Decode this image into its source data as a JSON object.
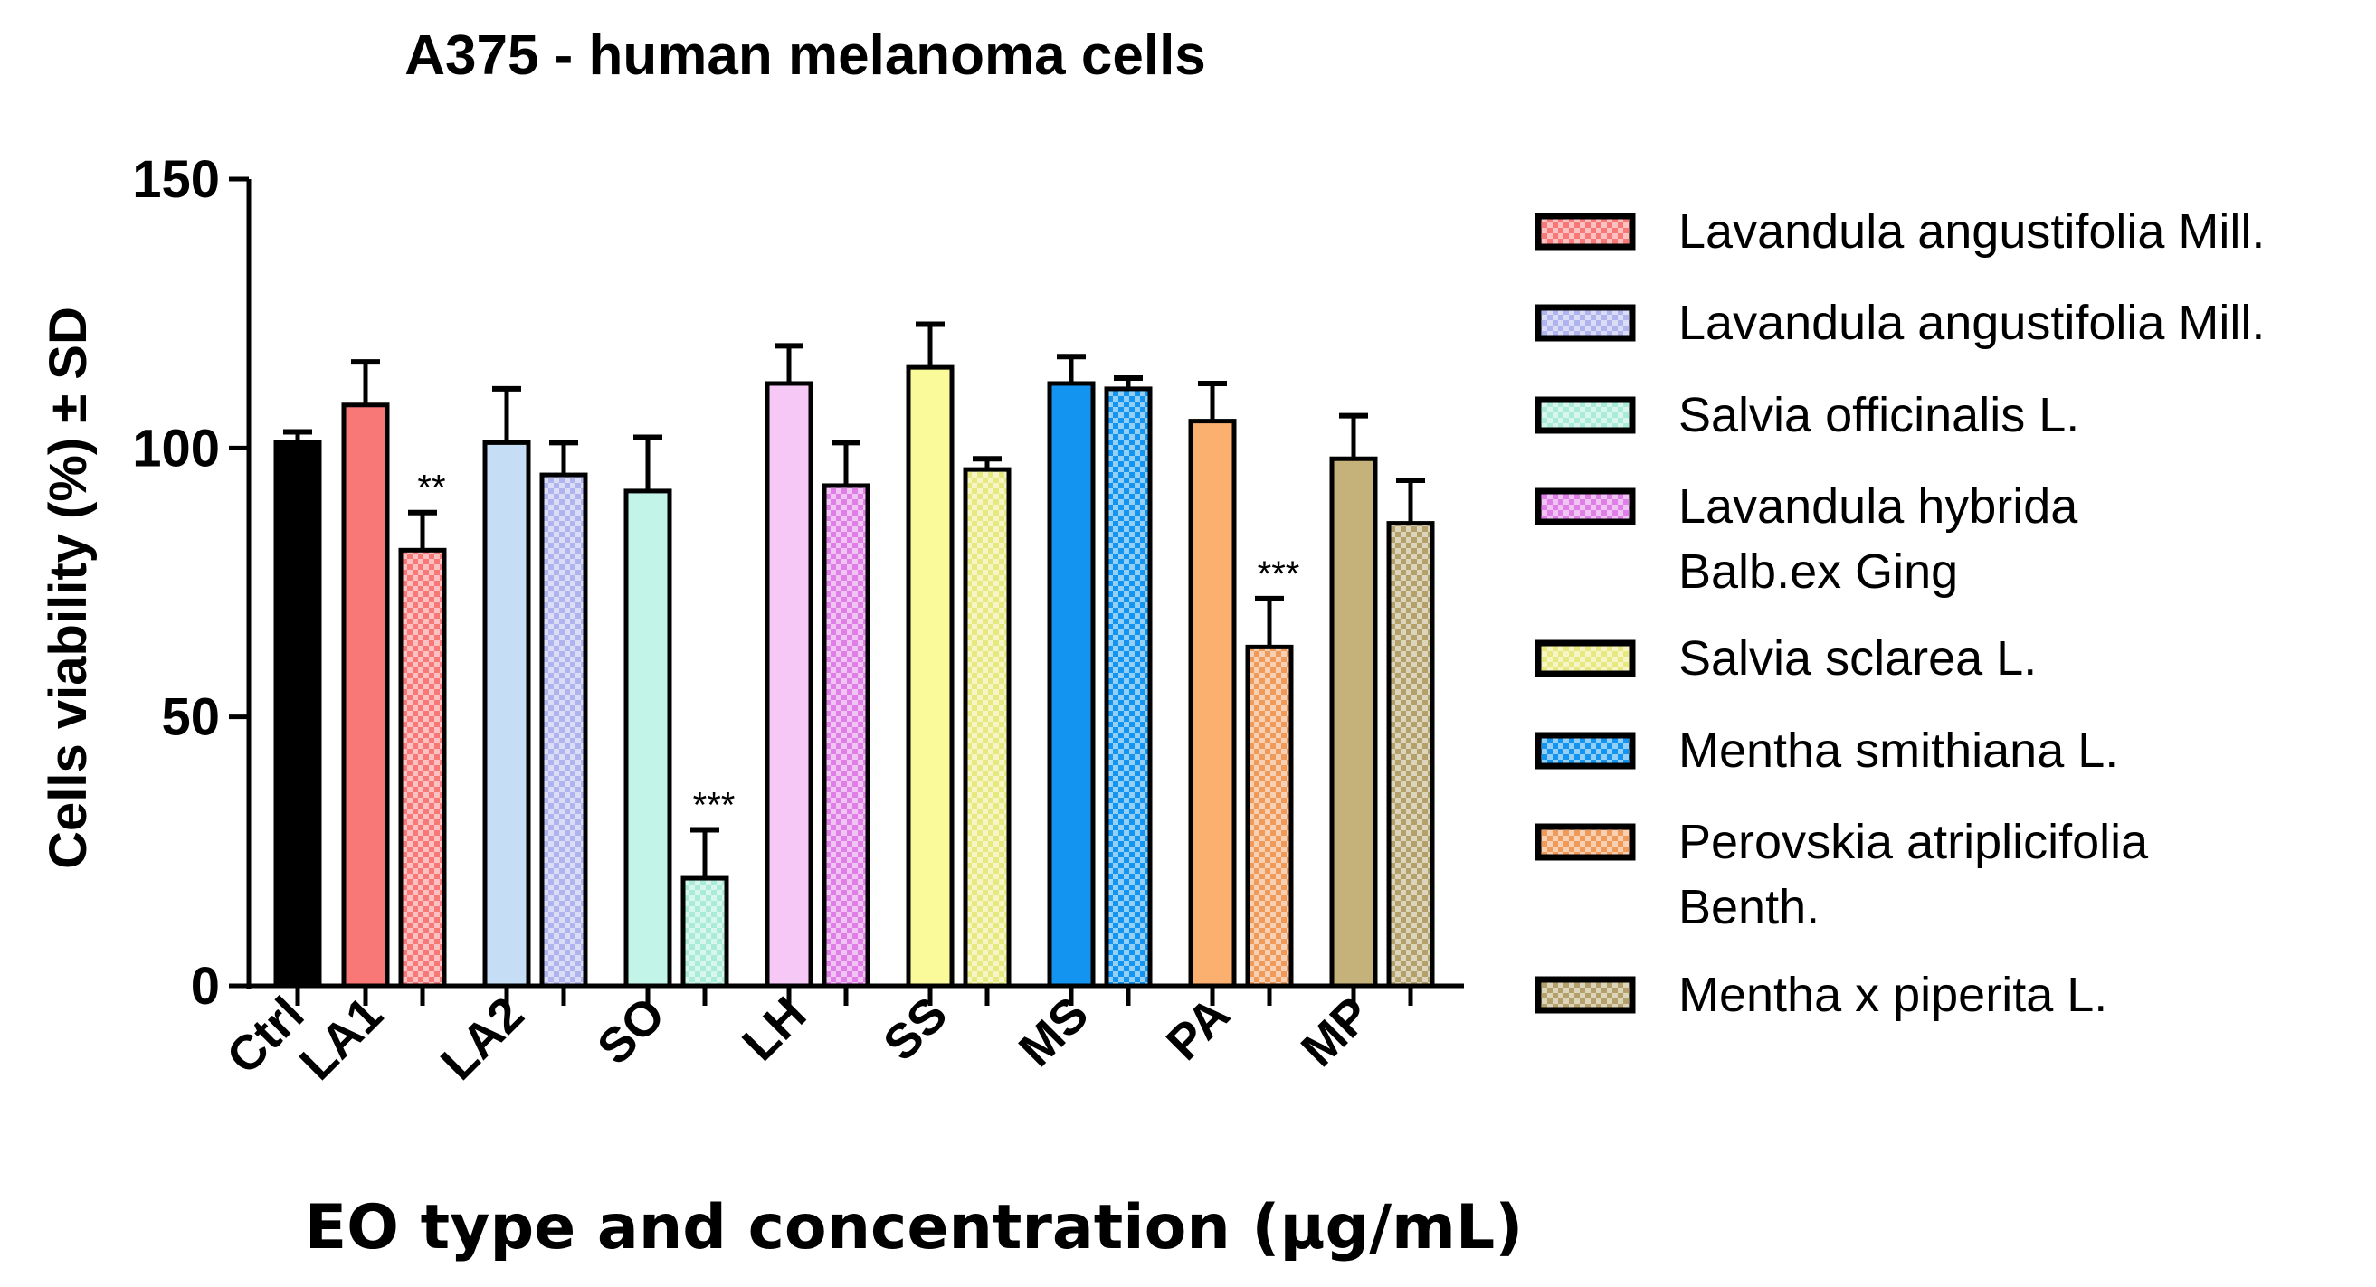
{
  "chart_data": {
    "type": "bar",
    "title": "A375 - human melanoma cells",
    "ylabel": "Cells viability (%) ± SD",
    "xlabel": "EO type and concentration (μg/mL)",
    "ylim": [
      0,
      150
    ],
    "yticks": [
      0,
      50,
      100,
      150
    ],
    "categories": [
      "Ctrl",
      "LA1",
      "LA2",
      "SO",
      "LH",
      "SS",
      "MS",
      "PA",
      "MP"
    ],
    "bars": [
      {
        "group": "Ctrl",
        "series": "Ctrl",
        "value": 101,
        "sd": 2,
        "fill": "#000000",
        "pattern": false,
        "annotation": ""
      },
      {
        "group": "LA1",
        "series": "Lavandula angustifolia Mill.",
        "value": 108,
        "sd": 8,
        "fill": "#f87878",
        "pattern": false,
        "annotation": ""
      },
      {
        "group": "LA1",
        "series": "Lavandula angustifolia Mill.",
        "value": 81,
        "sd": 7,
        "fill": "#f87878",
        "pattern": true,
        "annotation": "**"
      },
      {
        "group": "LA2",
        "series": "Lavandula angustifolia Mill.",
        "value": 101,
        "sd": 10,
        "fill": "#c6ddf6",
        "pattern": false,
        "annotation": ""
      },
      {
        "group": "LA2",
        "series": "Lavandula angustifolia Mill.",
        "value": 95,
        "sd": 6,
        "fill": "#b0b4ee",
        "pattern": true,
        "annotation": ""
      },
      {
        "group": "SO",
        "series": "Salvia officinalis L.",
        "value": 92,
        "sd": 10,
        "fill": "#c2f5e8",
        "pattern": false,
        "annotation": ""
      },
      {
        "group": "SO",
        "series": "Salvia officinalis L.",
        "value": 20,
        "sd": 9,
        "fill": "#a8ecd8",
        "pattern": true,
        "annotation": "***"
      },
      {
        "group": "LH",
        "series": "Lavandula hybrida Balb.ex Ging",
        "value": 112,
        "sd": 7,
        "fill": "#f6c8f6",
        "pattern": false,
        "annotation": ""
      },
      {
        "group": "LH",
        "series": "Lavandula hybrida Balb.ex Ging",
        "value": 93,
        "sd": 8,
        "fill": "#de7ee6",
        "pattern": true,
        "annotation": ""
      },
      {
        "group": "SS",
        "series": "Salvia sclarea L.",
        "value": 115,
        "sd": 8,
        "fill": "#fafa9a",
        "pattern": false,
        "annotation": ""
      },
      {
        "group": "SS",
        "series": "Salvia sclarea L.",
        "value": 96,
        "sd": 2,
        "fill": "#e8e880",
        "pattern": true,
        "annotation": ""
      },
      {
        "group": "MS",
        "series": "Mentha smithiana L.",
        "value": 112,
        "sd": 5,
        "fill": "#1294f0",
        "pattern": false,
        "annotation": ""
      },
      {
        "group": "MS",
        "series": "Mentha smithiana L.",
        "value": 111,
        "sd": 2,
        "fill": "#1294f0",
        "pattern": true,
        "annotation": ""
      },
      {
        "group": "PA",
        "series": "Perovskia atriplicifolia Benth.",
        "value": 105,
        "sd": 7,
        "fill": "#fbb070",
        "pattern": false,
        "annotation": ""
      },
      {
        "group": "PA",
        "series": "Perovskia atriplicifolia Benth.",
        "value": 63,
        "sd": 9,
        "fill": "#f09a5a",
        "pattern": true,
        "annotation": "***"
      },
      {
        "group": "MP",
        "series": "Mentha x piperita L.",
        "value": 98,
        "sd": 8,
        "fill": "#c4b27a",
        "pattern": false,
        "annotation": ""
      },
      {
        "group": "MP",
        "series": "Mentha x piperita L.",
        "value": 86,
        "sd": 8,
        "fill": "#b4a06a",
        "pattern": true,
        "annotation": ""
      }
    ],
    "legend": [
      {
        "lines": [
          "Lavandula angustifolia Mill."
        ],
        "fill": "#f87878"
      },
      {
        "lines": [
          "Lavandula angustifolia Mill."
        ],
        "fill": "#b0b4ee"
      },
      {
        "lines": [
          "Salvia officinalis L."
        ],
        "fill": "#a8ecd8"
      },
      {
        "lines": [
          "Lavandula hybrida",
          "Balb.ex Ging"
        ],
        "fill": "#de7ee6"
      },
      {
        "lines": [
          "Salvia sclarea L."
        ],
        "fill": "#e8e880"
      },
      {
        "lines": [
          "Mentha smithiana L."
        ],
        "fill": "#1294f0"
      },
      {
        "lines": [
          "Perovskia atriplicifolia",
          "Benth."
        ],
        "fill": "#f09a5a"
      },
      {
        "lines": [
          "Mentha x piperita L."
        ],
        "fill": "#b4a06a"
      }
    ],
    "legend_position": "right",
    "grid": false
  }
}
